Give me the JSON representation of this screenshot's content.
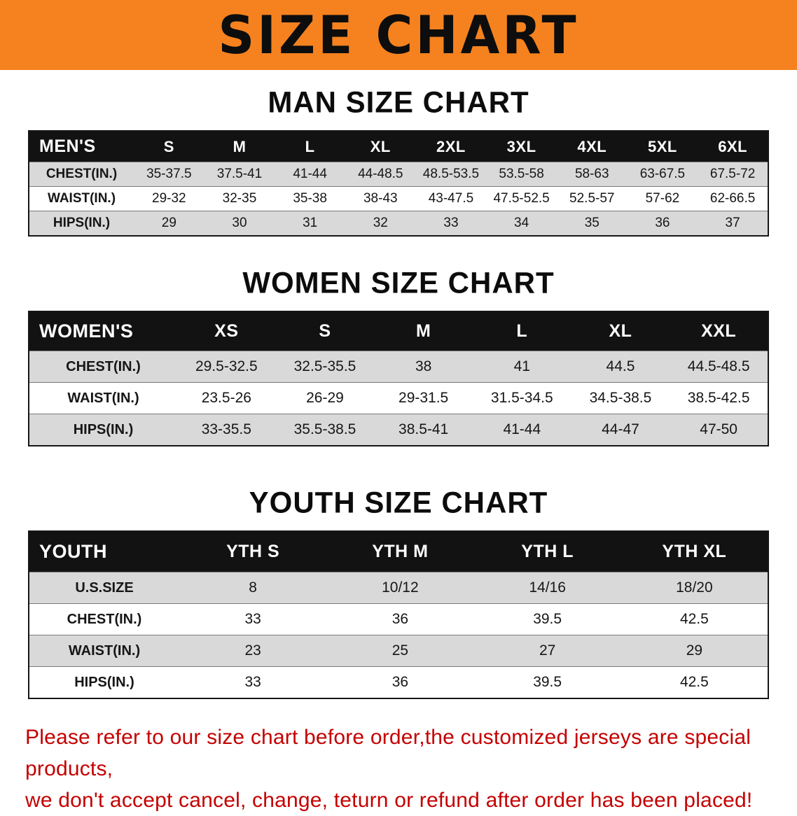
{
  "banner": {
    "title": "SIZE CHART"
  },
  "sections": [
    {
      "id": "mens",
      "title": "MAN SIZE CHART",
      "table": {
        "header_label": "MEN'S",
        "columns": [
          "S",
          "M",
          "L",
          "XL",
          "2XL",
          "3XL",
          "4XL",
          "5XL",
          "6XL"
        ],
        "rows": [
          {
            "label": "CHEST(IN.)",
            "values": [
              "35-37.5",
              "37.5-41",
              "41-44",
              "44-48.5",
              "48.5-53.5",
              "53.5-58",
              "58-63",
              "63-67.5",
              "67.5-72"
            ]
          },
          {
            "label": "WAIST(IN.)",
            "values": [
              "29-32",
              "32-35",
              "35-38",
              "38-43",
              "43-47.5",
              "47.5-52.5",
              "52.5-57",
              "57-62",
              "62-66.5"
            ]
          },
          {
            "label": "HIPS(IN.)",
            "values": [
              "29",
              "30",
              "31",
              "32",
              "33",
              "34",
              "35",
              "36",
              "37"
            ]
          }
        ]
      }
    },
    {
      "id": "womens",
      "title": "WOMEN SIZE CHART",
      "table": {
        "header_label": "WOMEN'S",
        "columns": [
          "XS",
          "S",
          "M",
          "L",
          "XL",
          "XXL"
        ],
        "rows": [
          {
            "label": "CHEST(IN.)",
            "values": [
              "29.5-32.5",
              "32.5-35.5",
              "38",
              "41",
              "44.5",
              "44.5-48.5"
            ]
          },
          {
            "label": "WAIST(IN.)",
            "values": [
              "23.5-26",
              "26-29",
              "29-31.5",
              "31.5-34.5",
              "34.5-38.5",
              "38.5-42.5"
            ]
          },
          {
            "label": "HIPS(IN.)",
            "values": [
              "33-35.5",
              "35.5-38.5",
              "38.5-41",
              "41-44",
              "44-47",
              "47-50"
            ]
          }
        ]
      }
    },
    {
      "id": "youth",
      "title": "YOUTH SIZE CHART",
      "table": {
        "header_label": "YOUTH",
        "columns": [
          "YTH S",
          "YTH M",
          "YTH L",
          "YTH XL"
        ],
        "rows": [
          {
            "label": "U.S.SIZE",
            "values": [
              "8",
              "10/12",
              "14/16",
              "18/20"
            ]
          },
          {
            "label": "CHEST(IN.)",
            "values": [
              "33",
              "36",
              "39.5",
              "42.5"
            ]
          },
          {
            "label": "WAIST(IN.)",
            "values": [
              "23",
              "25",
              "27",
              "29"
            ]
          },
          {
            "label": "HIPS(IN.)",
            "values": [
              "33",
              "36",
              "39.5",
              "42.5"
            ]
          }
        ]
      }
    }
  ],
  "disclaimer": {
    "line1": "Please refer to our size chart before order,the customized jerseys are special products,",
    "line2": "we don't accept cancel, change, teturn or refund after order has been placed!"
  },
  "colors": {
    "banner_orange": "#F5821F",
    "table_header_black": "#121212",
    "row_gray": "#D9D9D9",
    "disclaimer_red": "#C40000"
  }
}
